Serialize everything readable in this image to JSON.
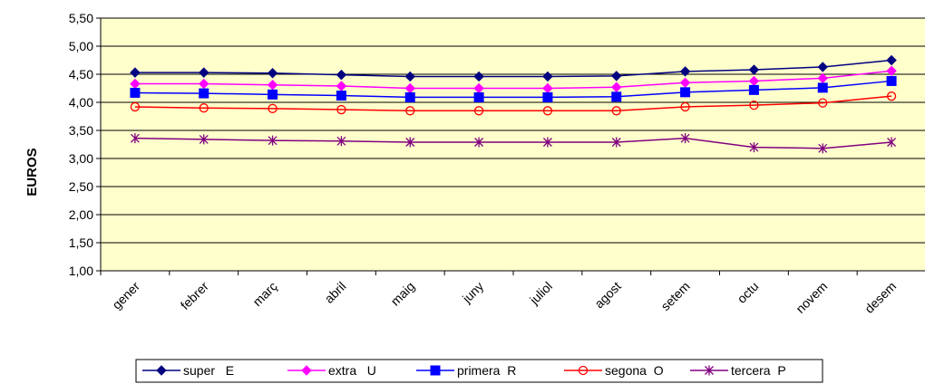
{
  "chart_data": {
    "type": "line",
    "title": "",
    "xlabel": "",
    "ylabel": "EUROS",
    "ylim": [
      1.0,
      5.5
    ],
    "yticks": [
      "1,00",
      "1,50",
      "2,00",
      "2,50",
      "3,00",
      "3,50",
      "4,00",
      "4,50",
      "5,00",
      "5,50"
    ],
    "grid": "horizontal",
    "legend_position": "bottom",
    "categories": [
      "gener",
      "febrer",
      "març",
      "abril",
      "maig",
      "juny",
      "juliol",
      "agost",
      "setem",
      "octu",
      "novem",
      "desem"
    ],
    "series": [
      {
        "name": "super   E",
        "color": "#000080",
        "marker": "diamond",
        "values": [
          4.53,
          4.53,
          4.52,
          4.49,
          4.46,
          4.46,
          4.46,
          4.47,
          4.55,
          4.58,
          4.63,
          4.75
        ]
      },
      {
        "name": "extra   U",
        "color": "#ff00ff",
        "marker": "diamond",
        "values": [
          4.33,
          4.33,
          4.31,
          4.29,
          4.25,
          4.25,
          4.25,
          4.27,
          4.35,
          4.38,
          4.43,
          4.56
        ]
      },
      {
        "name": "primera  R",
        "color": "#0000ff",
        "marker": "square",
        "values": [
          4.17,
          4.16,
          4.14,
          4.12,
          4.09,
          4.09,
          4.09,
          4.1,
          4.18,
          4.22,
          4.26,
          4.38
        ]
      },
      {
        "name": "segona  O",
        "color": "#ff0000",
        "marker": "circle",
        "values": [
          3.92,
          3.9,
          3.89,
          3.87,
          3.85,
          3.85,
          3.85,
          3.85,
          3.92,
          3.95,
          3.99,
          4.11
        ]
      },
      {
        "name": "tercera  P",
        "color": "#800080",
        "marker": "star",
        "values": [
          3.36,
          3.34,
          3.32,
          3.31,
          3.29,
          3.29,
          3.29,
          3.29,
          3.36,
          3.2,
          3.18,
          3.29
        ]
      }
    ]
  }
}
